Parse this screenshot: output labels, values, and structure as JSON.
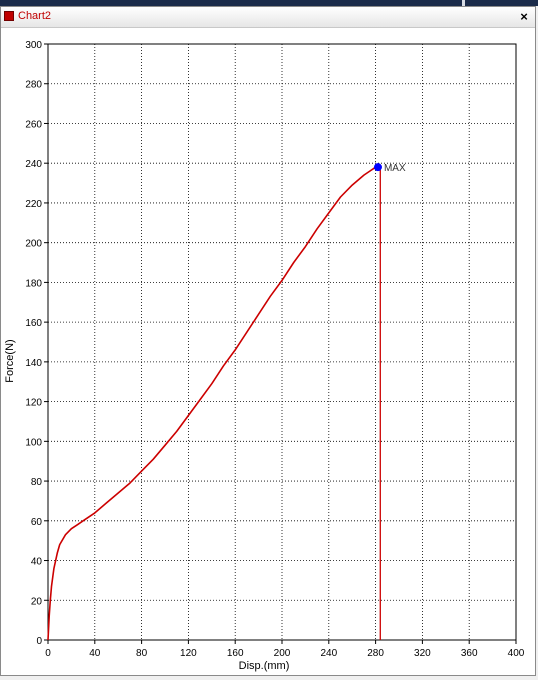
{
  "window": {
    "title": "Chart2",
    "close_label": "×"
  },
  "colors": {
    "curve": "#cc0000",
    "max_marker": "#0000ff",
    "max_line": "#cc0000",
    "title_text": "#c00000"
  },
  "chart_data": {
    "type": "line",
    "title": "",
    "xlabel": "Disp.(mm)",
    "ylabel": "Force(N)",
    "xlim": [
      0,
      400
    ],
    "ylim": [
      0,
      300
    ],
    "x_ticks": [
      0,
      40,
      80,
      120,
      160,
      200,
      240,
      280,
      320,
      360,
      400
    ],
    "y_ticks": [
      0,
      20,
      40,
      60,
      80,
      100,
      120,
      140,
      160,
      180,
      200,
      220,
      240,
      260,
      280,
      300
    ],
    "grid": true,
    "series": [
      {
        "x": [
          0,
          1,
          2,
          3,
          5,
          8,
          10,
          15,
          20,
          25,
          30,
          40,
          50,
          60,
          70,
          80,
          90,
          100,
          110,
          120,
          130,
          140,
          150,
          160,
          170,
          180,
          190,
          200,
          210,
          220,
          230,
          240,
          250,
          260,
          270,
          275,
          280
        ],
        "y": [
          0,
          12,
          20,
          27,
          36,
          44,
          48,
          53,
          56,
          58,
          60,
          64,
          69,
          74,
          79,
          85,
          91,
          98,
          105,
          113,
          121,
          129,
          138,
          146,
          155,
          164,
          173,
          181,
          190,
          198,
          207,
          215,
          223,
          229,
          234,
          236,
          238
        ]
      }
    ],
    "annotations": [
      {
        "label": "MAX",
        "x": 282,
        "y": 238
      }
    ],
    "max_drop_line_x": 284
  }
}
